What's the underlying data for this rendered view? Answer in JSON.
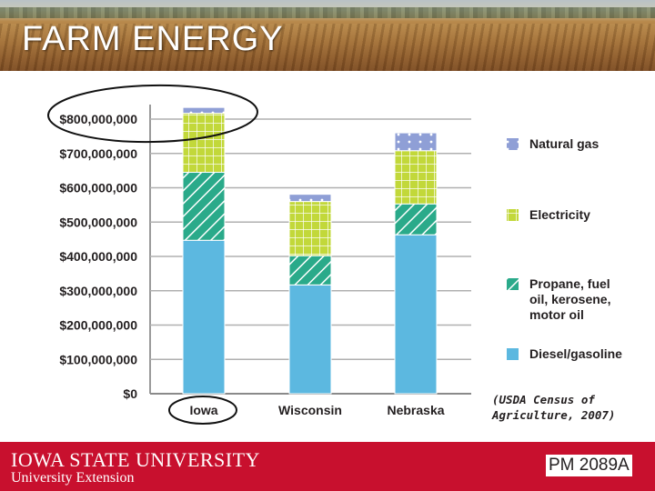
{
  "header": {
    "title": "FARM  ENERGY"
  },
  "chart_data": {
    "type": "bar",
    "stacked": true,
    "categories": [
      "Iowa",
      "Wisconsin",
      "Nebraska"
    ],
    "series": [
      {
        "name": "Diesel/gasoline",
        "color": "#5cb8e0",
        "pattern": "solid",
        "values": [
          447000000,
          317000000,
          463000000
        ]
      },
      {
        "name": "Propane, fuel oil, kerosene, motor oil",
        "color": "#2aaa8a",
        "pattern": "hatch",
        "values": [
          198000000,
          85000000,
          90000000
        ]
      },
      {
        "name": "Electricity",
        "color": "#c2d83a",
        "pattern": "grid",
        "values": [
          172000000,
          158000000,
          155000000
        ]
      },
      {
        "name": "Natural gas",
        "color": "#8f9fd6",
        "pattern": "dots",
        "values": [
          17000000,
          21000000,
          52000000
        ]
      }
    ],
    "yticks": [
      "$0",
      "$100,000,000",
      "$200,000,000",
      "$300,000,000",
      "$400,000,000",
      "$500,000,000",
      "$600,000,000",
      "$700,000,000",
      "$800,000,000"
    ],
    "ylim": [
      0,
      850000000
    ],
    "grid": true,
    "legend_position": "right",
    "xlabel": "",
    "ylabel": ""
  },
  "source_note": "(USDA Census of\nAgriculture, 2007)",
  "footer": {
    "university": "IOWA STATE UNIVERSITY",
    "unit": "University Extension",
    "publication": "PM 2089A"
  }
}
